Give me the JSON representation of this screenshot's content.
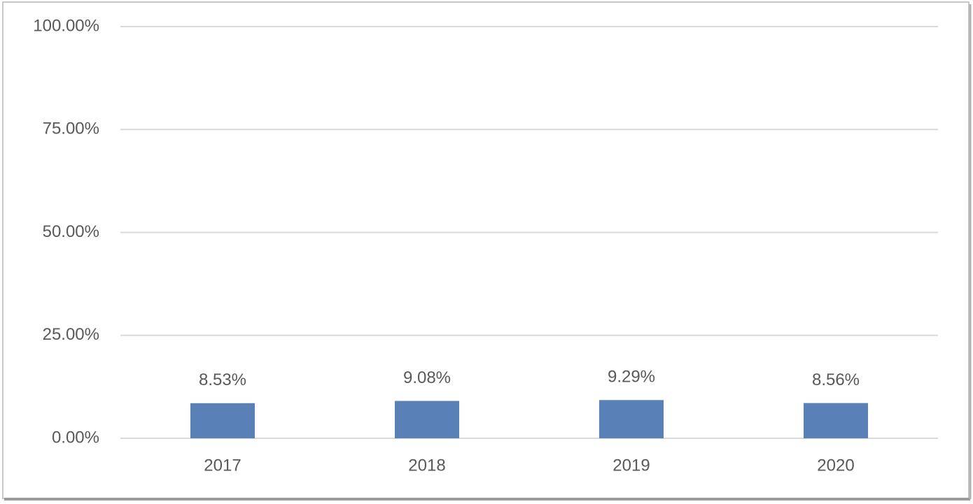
{
  "chart_data": {
    "type": "bar",
    "categories": [
      "2017",
      "2018",
      "2019",
      "2020"
    ],
    "values": [
      8.53,
      9.08,
      9.29,
      8.56
    ],
    "value_labels": [
      "8.53%",
      "9.08%",
      "9.29%",
      "8.56%"
    ],
    "color": "#5a80b8",
    "ylim": [
      0,
      100
    ],
    "yticks": [
      {
        "value": 0,
        "label": "0.00%"
      },
      {
        "value": 25,
        "label": "25.00%"
      },
      {
        "value": 50,
        "label": "50.00%"
      },
      {
        "value": 75,
        "label": "75.00%"
      },
      {
        "value": 100,
        "label": "100.00%"
      }
    ],
    "grid": true
  }
}
